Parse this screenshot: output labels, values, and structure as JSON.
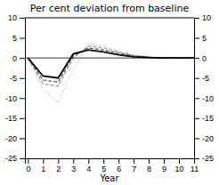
{
  "chart_data": {
    "type": "line",
    "title": "Per cent deviation from baseline",
    "x_label": "Year",
    "x": [
      0,
      1,
      2,
      3,
      4,
      5,
      6,
      7,
      8,
      9,
      10,
      11
    ],
    "series": [
      {
        "color": "#000000",
        "line_style": "solid",
        "values": [
          0,
          -4.5,
          -5.0,
          1.0,
          2.0,
          1.5,
          0.8,
          0.3,
          0.1,
          0.0,
          0.0,
          0.0
        ]
      },
      {
        "color": "#555555",
        "line_style": "dashed",
        "values": [
          0,
          -5.5,
          -6.0,
          0.5,
          2.5,
          2.0,
          1.2,
          0.5,
          0.2,
          0.0,
          0.0,
          0.0
        ]
      },
      {
        "color": "#999999",
        "line_style": "dashed",
        "values": [
          0,
          -6.5,
          -7.0,
          0.0,
          3.0,
          2.5,
          1.5,
          0.6,
          0.2,
          0.0,
          0.0,
          0.0
        ]
      },
      {
        "color": "#bbbbbb",
        "line_style": "dotted",
        "values": [
          0,
          -8.0,
          -11.0,
          -3.0,
          3.5,
          3.0,
          1.8,
          0.8,
          0.3,
          0.1,
          0.0,
          0.0
        ]
      }
    ],
    "hline": 0,
    "xlim": [
      -0.2,
      11
    ],
    "xticks": [
      0,
      1,
      2,
      3,
      4,
      5,
      6,
      7,
      8,
      9,
      10,
      11
    ],
    "ylim": [
      -25,
      10
    ],
    "yticks": [
      -25,
      -20,
      -15,
      -10,
      -5,
      0,
      5,
      10
    ],
    "y2lim": [
      -25,
      10
    ],
    "y2ticks": [
      -25,
      -20,
      -15,
      -10,
      -5,
      0,
      5,
      10
    ],
    "grid": false
  }
}
